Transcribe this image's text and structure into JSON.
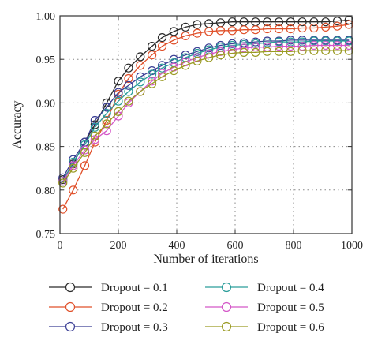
{
  "chart_data": {
    "type": "line",
    "xlabel": "Number of iterations",
    "ylabel": "Accuracy",
    "xlim": [
      0,
      1000
    ],
    "ylim": [
      0.75,
      1.0
    ],
    "xticks": [
      0,
      200,
      400,
      600,
      800,
      1000
    ],
    "xtick_labels": [
      "0",
      "200",
      "400",
      "600",
      "800",
      "1000"
    ],
    "yticks": [
      0.75,
      0.8,
      0.85,
      0.9,
      0.95,
      1.0
    ],
    "ytick_labels": [
      "0.75",
      "0.80",
      "0.85",
      "0.90",
      "0.95",
      "1.00"
    ],
    "grid": true,
    "legend_position": "bottom",
    "marker": "open-circle",
    "x": [
      10,
      45,
      85,
      120,
      160,
      200,
      235,
      275,
      315,
      350,
      390,
      430,
      470,
      510,
      550,
      590,
      630,
      670,
      710,
      750,
      790,
      830,
      870,
      910,
      950,
      990
    ],
    "series": [
      {
        "name": "Dropout = 0.1",
        "color": "#2b2b2b",
        "values": [
          0.812,
          0.83,
          0.855,
          0.875,
          0.9,
          0.925,
          0.94,
          0.953,
          0.965,
          0.975,
          0.982,
          0.987,
          0.99,
          0.991,
          0.992,
          0.993,
          0.993,
          0.993,
          0.993,
          0.993,
          0.993,
          0.993,
          0.993,
          0.993,
          0.994,
          0.995
        ]
      },
      {
        "name": "Dropout = 0.2",
        "color": "#e0502a",
        "values": [
          0.778,
          0.8,
          0.828,
          0.855,
          0.88,
          0.91,
          0.928,
          0.943,
          0.955,
          0.965,
          0.972,
          0.977,
          0.98,
          0.982,
          0.983,
          0.983,
          0.984,
          0.984,
          0.985,
          0.985,
          0.985,
          0.986,
          0.986,
          0.987,
          0.988,
          0.99
        ]
      },
      {
        "name": "Dropout = 0.3",
        "color": "#3b3f95",
        "values": [
          0.814,
          0.835,
          0.855,
          0.88,
          0.895,
          0.912,
          0.92,
          0.93,
          0.937,
          0.943,
          0.95,
          0.955,
          0.959,
          0.963,
          0.966,
          0.968,
          0.969,
          0.97,
          0.971,
          0.971,
          0.972,
          0.972,
          0.972,
          0.972,
          0.972,
          0.972
        ]
      },
      {
        "name": "Dropout = 0.4",
        "color": "#2a9d9a",
        "values": [
          0.81,
          0.832,
          0.852,
          0.872,
          0.888,
          0.902,
          0.913,
          0.924,
          0.933,
          0.94,
          0.946,
          0.952,
          0.957,
          0.961,
          0.964,
          0.966,
          0.967,
          0.968,
          0.969,
          0.97,
          0.97,
          0.97,
          0.971,
          0.971,
          0.971,
          0.971
        ]
      },
      {
        "name": "Dropout = 0.5",
        "color": "#d457c8",
        "values": [
          0.81,
          0.828,
          0.846,
          0.858,
          0.868,
          0.885,
          0.9,
          0.913,
          0.925,
          0.934,
          0.941,
          0.947,
          0.952,
          0.956,
          0.959,
          0.961,
          0.963,
          0.964,
          0.964,
          0.965,
          0.965,
          0.965,
          0.966,
          0.966,
          0.966,
          0.966
        ]
      },
      {
        "name": "Dropout = 0.6",
        "color": "#9a9a22",
        "values": [
          0.808,
          0.825,
          0.843,
          0.862,
          0.876,
          0.89,
          0.902,
          0.913,
          0.922,
          0.93,
          0.937,
          0.943,
          0.948,
          0.952,
          0.955,
          0.957,
          0.958,
          0.958,
          0.959,
          0.959,
          0.959,
          0.96,
          0.96,
          0.96,
          0.96,
          0.96
        ]
      }
    ]
  }
}
